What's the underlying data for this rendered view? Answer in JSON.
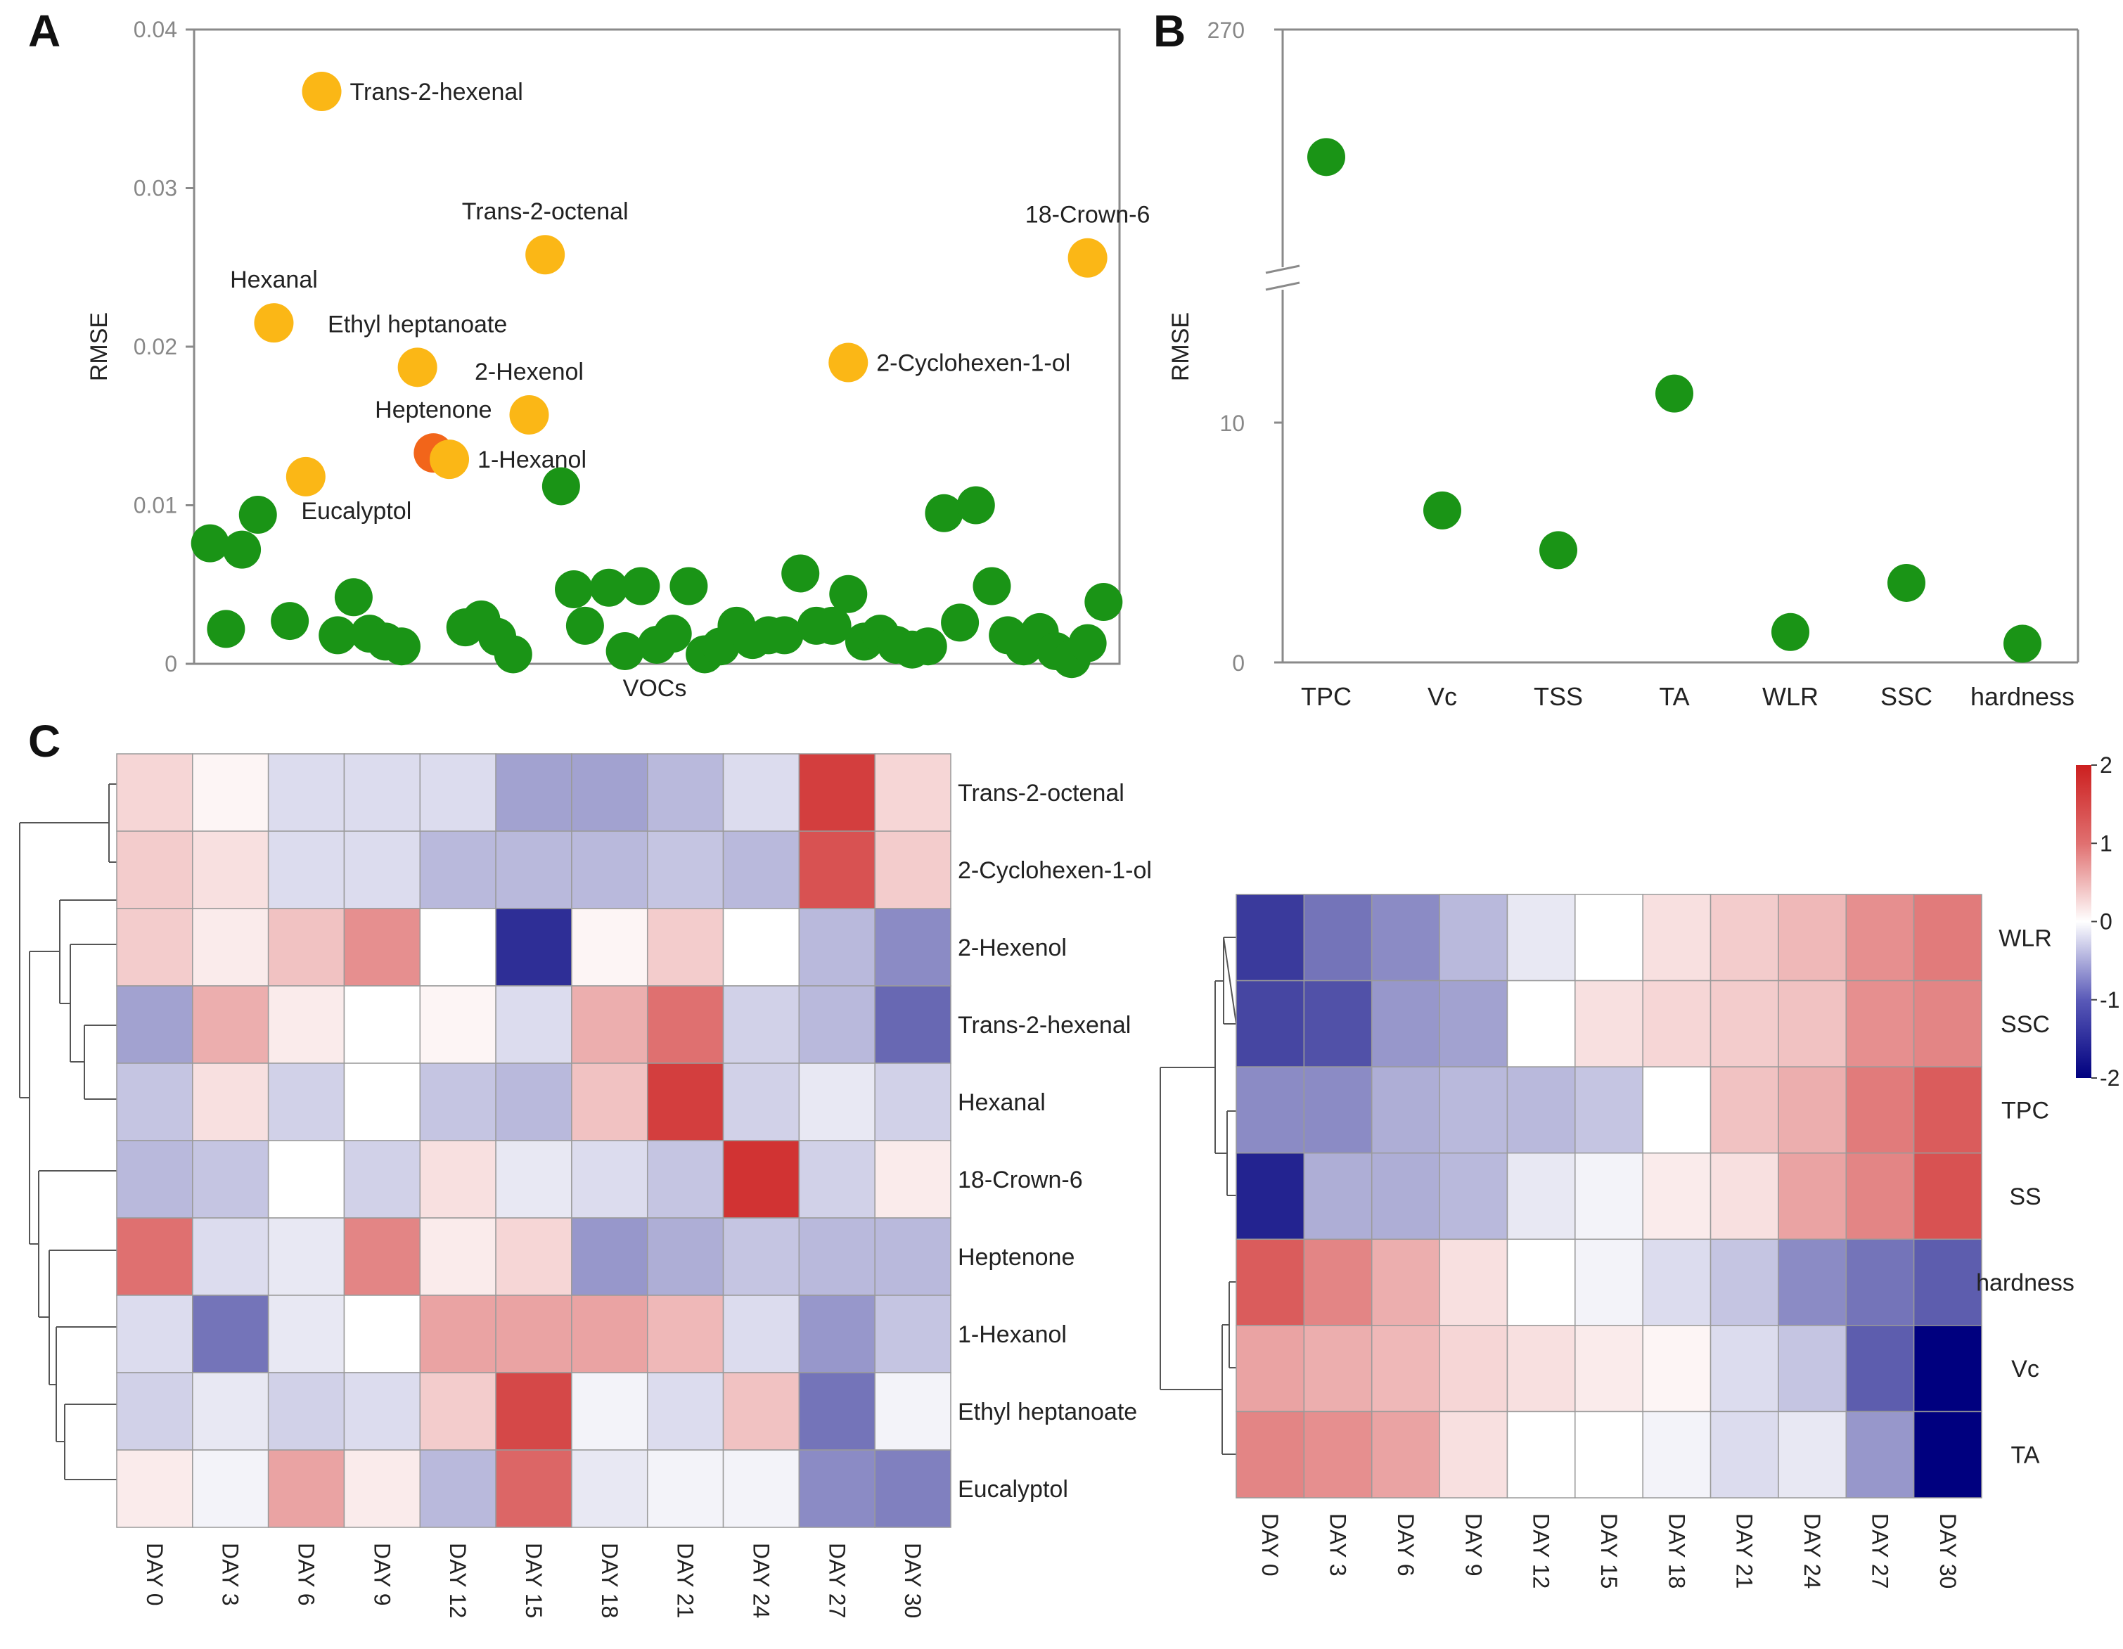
{
  "colors": {
    "green": "#1a9416",
    "yellow": "#fbb716",
    "orange": "#f2651a",
    "axis": "#8a8a8a",
    "heat_low": "#00007f",
    "heat_mid": "#ffffff",
    "heat_high": "#cc1f1f"
  },
  "chart_data": [
    {
      "id": "A",
      "panel": "A",
      "type": "scatter",
      "xlabel": "VOCs",
      "ylabel": "RMSE",
      "ylim": [
        0,
        0.04
      ],
      "yticks": [
        "0",
        "0.01",
        "0.02",
        "0.03",
        "0.04"
      ],
      "labeled_points": [
        {
          "name": "Trans-2-hexenal",
          "x": 8.0,
          "y": 0.0361,
          "color": "yellow",
          "label_side": "right"
        },
        {
          "name": "Trans-2-octenal",
          "x": 22.0,
          "y": 0.0258,
          "color": "yellow",
          "label_side": "above"
        },
        {
          "name": "18-Crown-6",
          "x": 56.0,
          "y": 0.0256,
          "color": "yellow",
          "label_side": "above"
        },
        {
          "name": "Hexanal",
          "x": 5.0,
          "y": 0.0215,
          "color": "yellow",
          "label_side": "above"
        },
        {
          "name": "Ethyl heptanoate",
          "x": 14.0,
          "y": 0.0187,
          "color": "yellow",
          "label_side": "above"
        },
        {
          "name": "2-Cyclohexen-1-ol",
          "x": 41.0,
          "y": 0.019,
          "color": "yellow",
          "label_side": "right"
        },
        {
          "name": "2-Hexenol",
          "x": 21.0,
          "y": 0.0157,
          "color": "yellow",
          "label_side": "above"
        },
        {
          "name": "Heptenone",
          "x": 15.0,
          "y": 0.0133,
          "color": "orange",
          "label_side": "above"
        },
        {
          "name": "1-Hexanol",
          "x": 16.0,
          "y": 0.0129,
          "color": "yellow",
          "label_side": "right"
        },
        {
          "name": "Eucalyptol",
          "x": 7.0,
          "y": 0.0118,
          "color": "yellow",
          "label_side": "below"
        }
      ],
      "green_points": [
        [
          1,
          0.0076
        ],
        [
          2,
          0.0022
        ],
        [
          3,
          0.0072
        ],
        [
          4,
          0.0094
        ],
        [
          6,
          0.0027
        ],
        [
          9,
          0.0018
        ],
        [
          10,
          0.0042
        ],
        [
          11,
          0.0019
        ],
        [
          12,
          0.0014
        ],
        [
          13,
          0.0011
        ],
        [
          17,
          0.0023
        ],
        [
          18,
          0.0028
        ],
        [
          19,
          0.0017
        ],
        [
          20,
          0.0006
        ],
        [
          23,
          0.0112
        ],
        [
          23.8,
          0.0047
        ],
        [
          24.5,
          0.0024
        ],
        [
          26,
          0.0048
        ],
        [
          27,
          0.0008
        ],
        [
          28,
          0.0049
        ],
        [
          29,
          0.0012
        ],
        [
          30,
          0.0019
        ],
        [
          31,
          0.0049
        ],
        [
          32,
          0.0006
        ],
        [
          33,
          0.0011
        ],
        [
          34,
          0.0024
        ],
        [
          35,
          0.0015
        ],
        [
          36,
          0.0018
        ],
        [
          37,
          0.0018
        ],
        [
          38,
          0.0057
        ],
        [
          39,
          0.0024
        ],
        [
          40,
          0.0024
        ],
        [
          41,
          0.0044
        ],
        [
          42,
          0.0014
        ],
        [
          43,
          0.0019
        ],
        [
          44,
          0.0012
        ],
        [
          45,
          0.0009
        ],
        [
          46,
          0.0011
        ],
        [
          47,
          0.0095
        ],
        [
          48,
          0.0026
        ],
        [
          49,
          0.01
        ],
        [
          50,
          0.0049
        ],
        [
          51,
          0.0018
        ],
        [
          52,
          0.0011
        ],
        [
          53,
          0.002
        ],
        [
          54,
          0.0008
        ],
        [
          55,
          0.0003
        ],
        [
          56,
          0.0013
        ],
        [
          57,
          0.0039
        ]
      ],
      "x_domain": [
        0,
        58
      ]
    },
    {
      "id": "B",
      "panel": "B",
      "type": "scatter",
      "xlabel": "",
      "ylabel": "RMSE",
      "categories": [
        "TPC",
        "Vc",
        "TSS",
        "TA",
        "WLR",
        "SSC",
        "hardness"
      ],
      "values": [
        230,
        6.5,
        4.8,
        11.5,
        1.3,
        3.4,
        0.8
      ],
      "yticks": [
        "0",
        "10",
        "270"
      ],
      "axis_break": {
        "lower_max": 16,
        "upper_min": 195,
        "upper_max": 270
      }
    },
    {
      "id": "C-left",
      "panel": "C",
      "type": "heatmap",
      "columns": [
        "DAY 0",
        "DAY 3",
        "DAY 6",
        "DAY 9",
        "DAY 12",
        "DAY 15",
        "DAY 18",
        "DAY 21",
        "DAY 24",
        "DAY 27",
        "DAY 30"
      ],
      "rows": [
        "Trans-2-octenal",
        "2-Cyclohexen-1-ol",
        "2-Hexenol",
        "Trans-2-hexenal",
        "Hexanal",
        "18-Crown-6",
        "Heptenone",
        "1-Hexanol",
        "Ethyl heptanoate",
        "Eucalyptol"
      ],
      "values": [
        [
          0.4,
          0.1,
          -0.3,
          -0.3,
          -0.3,
          -0.8,
          -0.8,
          -0.6,
          -0.3,
          1.9,
          0.4
        ],
        [
          0.5,
          0.3,
          -0.3,
          -0.3,
          -0.6,
          -0.6,
          -0.6,
          -0.5,
          -0.6,
          1.7,
          0.5
        ],
        [
          0.5,
          0.2,
          0.6,
          1.1,
          0.0,
          -1.8,
          0.1,
          0.5,
          0.0,
          -0.6,
          -1.0
        ],
        [
          -0.8,
          0.8,
          0.2,
          0.0,
          0.1,
          -0.3,
          0.8,
          1.4,
          -0.4,
          -0.6,
          -1.3
        ],
        [
          -0.5,
          0.3,
          -0.4,
          0.0,
          -0.5,
          -0.6,
          0.6,
          1.9,
          -0.4,
          -0.2,
          -0.4
        ],
        [
          -0.6,
          -0.5,
          0.0,
          -0.4,
          0.3,
          -0.2,
          -0.3,
          -0.5,
          2.0,
          -0.4,
          0.2
        ],
        [
          1.4,
          -0.3,
          -0.2,
          1.2,
          0.2,
          0.4,
          -0.9,
          -0.7,
          -0.5,
          -0.6,
          -0.6
        ],
        [
          -0.3,
          -1.2,
          -0.2,
          0.0,
          0.9,
          0.9,
          0.9,
          0.7,
          -0.3,
          -0.9,
          -0.5
        ],
        [
          -0.4,
          -0.2,
          -0.4,
          -0.3,
          0.5,
          1.8,
          -0.1,
          -0.3,
          0.6,
          -1.2,
          -0.1
        ],
        [
          0.2,
          -0.1,
          0.9,
          0.2,
          -0.6,
          1.5,
          -0.2,
          -0.1,
          -0.1,
          -1.0,
          -1.1
        ]
      ]
    },
    {
      "id": "C-right",
      "panel": "C",
      "type": "heatmap",
      "columns": [
        "DAY 0",
        "DAY 3",
        "DAY 6",
        "DAY 9",
        "DAY 12",
        "DAY 15",
        "DAY 18",
        "DAY 21",
        "DAY 24",
        "DAY 27",
        "DAY 30"
      ],
      "rows": [
        "WLR",
        "SSC",
        "TPC",
        "SS",
        "hardness",
        "Vc",
        "TA"
      ],
      "values": [
        [
          -1.7,
          -1.2,
          -1.0,
          -0.6,
          -0.2,
          0.0,
          0.3,
          0.5,
          0.7,
          1.1,
          1.3
        ],
        [
          -1.6,
          -1.5,
          -0.9,
          -0.8,
          0.0,
          0.3,
          0.4,
          0.5,
          0.6,
          1.1,
          1.2
        ],
        [
          -1.0,
          -1.0,
          -0.7,
          -0.6,
          -0.6,
          -0.5,
          0.0,
          0.6,
          0.8,
          1.3,
          1.6
        ],
        [
          -1.9,
          -0.7,
          -0.7,
          -0.6,
          -0.2,
          -0.1,
          0.2,
          0.3,
          0.9,
          1.2,
          1.7
        ],
        [
          1.6,
          1.2,
          0.8,
          0.3,
          0.0,
          -0.1,
          -0.3,
          -0.5,
          -1.0,
          -1.2,
          -1.4
        ],
        [
          0.9,
          0.8,
          0.7,
          0.4,
          0.3,
          0.2,
          0.1,
          -0.3,
          -0.5,
          -1.4,
          -2.4
        ],
        [
          1.2,
          1.1,
          0.9,
          0.3,
          0.0,
          0.0,
          -0.1,
          -0.3,
          -0.2,
          -0.9,
          -2.4
        ]
      ],
      "colorbar": {
        "min": -2,
        "max": 2,
        "ticks": [
          "2",
          "1",
          "0",
          "-1",
          "-2"
        ]
      }
    }
  ]
}
